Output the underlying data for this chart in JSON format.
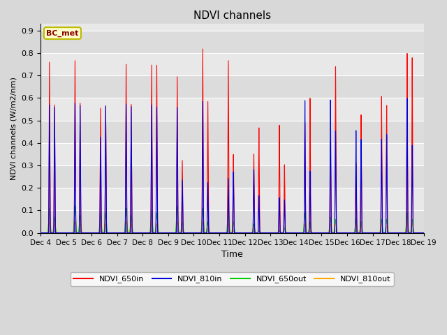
{
  "title": "NDVI channels",
  "ylabel": "NDVI channels (W/m2/nm)",
  "xlabel": "Time",
  "annotation": "BC_met",
  "ylim": [
    0.0,
    0.93
  ],
  "yticks": [
    0.0,
    0.1,
    0.2,
    0.3,
    0.4,
    0.5,
    0.6,
    0.7,
    0.8,
    0.9
  ],
  "xtick_labels": [
    "Dec 4",
    "Dec 5",
    "Dec 6",
    "Dec 7",
    "Dec 8",
    "Dec 9",
    "Dec 10",
    "Dec 11",
    "Dec 12",
    "Dec 13",
    "Dec 14",
    "Dec 15",
    "Dec 16",
    "Dec 17",
    "Dec 18",
    "Dec 19"
  ],
  "legend_labels": [
    "NDVI_650in",
    "NDVI_810in",
    "NDVI_650out",
    "NDVI_810out"
  ],
  "legend_colors": [
    "#ff0000",
    "#0000dd",
    "#00cc00",
    "#ffaa00"
  ],
  "fig_facecolor": "#d8d8d8",
  "ax_facecolor": "#e8e8e8",
  "grid_color": "#ffffff",
  "band_colors": [
    "#dcdcdc",
    "#e8e8e8"
  ],
  "days": 15,
  "day0_650in": [
    0.76,
    0.77,
    0.56,
    0.76,
    0.76,
    0.71,
    0.84,
    0.79,
    0.36,
    0.49,
    0.5,
    0.41,
    0.31,
    0.61,
    0.8
  ],
  "day1_650in": [
    0.57,
    0.58,
    0.57,
    0.58,
    0.76,
    0.33,
    0.6,
    0.36,
    0.48,
    0.31,
    0.61,
    0.75,
    0.53,
    0.57,
    0.78
  ],
  "day0_810in": [
    0.57,
    0.58,
    0.43,
    0.58,
    0.58,
    0.57,
    0.6,
    0.25,
    0.29,
    0.16,
    0.6,
    0.6,
    0.46,
    0.42,
    0.6
  ],
  "day1_810in": [
    0.56,
    0.57,
    0.57,
    0.57,
    0.57,
    0.24,
    0.23,
    0.28,
    0.17,
    0.15,
    0.28,
    0.46,
    0.42,
    0.44,
    0.39
  ],
  "day0_650out": [
    0.11,
    0.12,
    0.09,
    0.11,
    0.1,
    0.12,
    0.11,
    0.11,
    0.04,
    0.01,
    0.09,
    0.07,
    0.06,
    0.06,
    0.09
  ],
  "day1_650out": [
    0.07,
    0.08,
    0.09,
    0.08,
    0.09,
    0.05,
    0.05,
    0.05,
    0.01,
    0.02,
    0.05,
    0.06,
    0.05,
    0.06,
    0.06
  ],
  "day0_810out": [
    0.05,
    0.05,
    0.04,
    0.05,
    0.05,
    0.05,
    0.05,
    0.04,
    0.02,
    0.01,
    0.04,
    0.04,
    0.04,
    0.04,
    0.05
  ],
  "day1_810out": [
    0.04,
    0.04,
    0.04,
    0.04,
    0.04,
    0.02,
    0.02,
    0.01,
    0.01,
    0.03,
    0.03,
    0.04,
    0.03,
    0.03,
    0.04
  ]
}
